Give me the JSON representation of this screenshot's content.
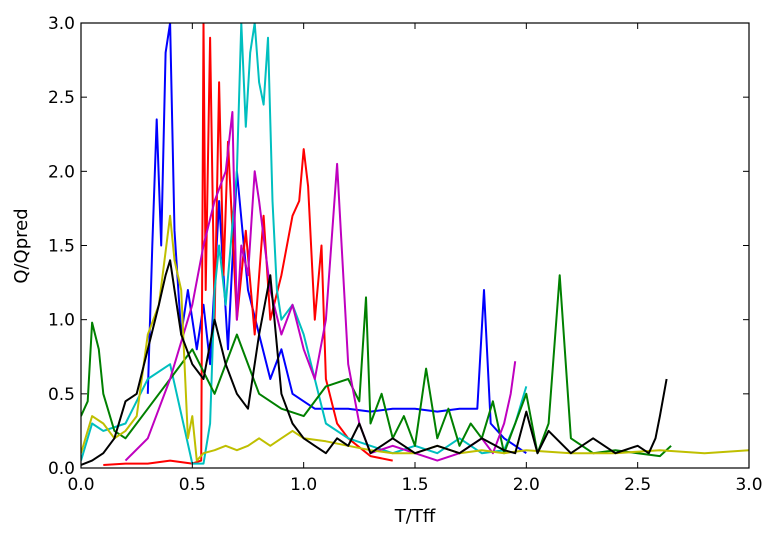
{
  "chart_data": {
    "type": "line",
    "xlabel": "T/Tff",
    "ylabel": "Q/Qpred",
    "xlim": [
      0.0,
      3.0
    ],
    "ylim": [
      0.0,
      3.0
    ],
    "xticks": [
      "0.0",
      "0.5",
      "1.0",
      "1.5",
      "2.0",
      "2.5",
      "3.0"
    ],
    "yticks": [
      "0.0",
      "0.5",
      "1.0",
      "1.5",
      "2.0",
      "2.5",
      "3.0"
    ],
    "grid": false,
    "series": [
      {
        "color": "#0000ff",
        "x": [
          0.3,
          0.32,
          0.34,
          0.36,
          0.38,
          0.4,
          0.42,
          0.45,
          0.48,
          0.52,
          0.55,
          0.58,
          0.62,
          0.66,
          0.7,
          0.75,
          0.8,
          0.85,
          0.9,
          0.95,
          1.0,
          1.05,
          1.1,
          1.2,
          1.3,
          1.4,
          1.5,
          1.6,
          1.7,
          1.78,
          1.81,
          1.84,
          1.9,
          2.0
        ],
        "y": [
          0.5,
          1.5,
          2.35,
          1.5,
          2.8,
          3.0,
          1.6,
          0.9,
          1.2,
          0.8,
          1.1,
          0.7,
          1.8,
          0.8,
          2.0,
          1.2,
          0.9,
          0.6,
          0.8,
          0.5,
          0.45,
          0.4,
          0.4,
          0.4,
          0.38,
          0.4,
          0.4,
          0.38,
          0.4,
          0.4,
          1.2,
          0.3,
          0.2,
          0.1
        ]
      },
      {
        "color": "#ff0000",
        "x": [
          0.1,
          0.2,
          0.3,
          0.4,
          0.5,
          0.54,
          0.55,
          0.56,
          0.58,
          0.6,
          0.62,
          0.64,
          0.66,
          0.7,
          0.74,
          0.78,
          0.82,
          0.85,
          0.9,
          0.95,
          0.98,
          1.0,
          1.02,
          1.05,
          1.08,
          1.1,
          1.15,
          1.2,
          1.3,
          1.4
        ],
        "y": [
          0.02,
          0.03,
          0.03,
          0.05,
          0.03,
          0.05,
          3.0,
          1.2,
          2.9,
          1.0,
          2.6,
          1.3,
          2.2,
          1.0,
          1.6,
          0.9,
          1.7,
          1.0,
          1.3,
          1.7,
          1.8,
          2.15,
          1.9,
          1.0,
          1.5,
          0.6,
          0.3,
          0.2,
          0.08,
          0.05
        ]
      },
      {
        "color": "#00bfbf",
        "x": [
          0.0,
          0.05,
          0.1,
          0.2,
          0.3,
          0.4,
          0.5,
          0.55,
          0.58,
          0.6,
          0.62,
          0.65,
          0.7,
          0.72,
          0.74,
          0.76,
          0.78,
          0.8,
          0.82,
          0.84,
          0.86,
          0.88,
          0.9,
          0.95,
          1.0,
          1.05,
          1.1,
          1.2,
          1.3,
          1.4,
          1.5,
          1.6,
          1.7,
          1.8,
          1.9,
          1.95,
          2.0
        ],
        "y": [
          0.05,
          0.3,
          0.25,
          0.3,
          0.6,
          0.7,
          0.03,
          0.03,
          0.3,
          1.2,
          1.5,
          1.1,
          2.0,
          3.0,
          2.3,
          2.8,
          3.0,
          2.6,
          2.45,
          2.9,
          1.8,
          1.2,
          1.0,
          1.1,
          0.9,
          0.6,
          0.3,
          0.2,
          0.15,
          0.1,
          0.15,
          0.1,
          0.2,
          0.1,
          0.12,
          0.3,
          0.55
        ]
      },
      {
        "color": "#008000",
        "x": [
          0.0,
          0.03,
          0.05,
          0.08,
          0.1,
          0.15,
          0.2,
          0.3,
          0.4,
          0.5,
          0.6,
          0.7,
          0.8,
          0.9,
          1.0,
          1.1,
          1.2,
          1.25,
          1.28,
          1.3,
          1.35,
          1.4,
          1.45,
          1.5,
          1.55,
          1.6,
          1.65,
          1.7,
          1.75,
          1.8,
          1.85,
          1.9,
          2.0,
          2.05,
          2.1,
          2.15,
          2.2,
          2.3,
          2.4,
          2.5,
          2.6,
          2.65
        ],
        "y": [
          0.35,
          0.45,
          0.98,
          0.8,
          0.5,
          0.25,
          0.2,
          0.4,
          0.6,
          0.8,
          0.5,
          0.9,
          0.5,
          0.4,
          0.35,
          0.55,
          0.6,
          0.45,
          1.15,
          0.3,
          0.5,
          0.2,
          0.35,
          0.15,
          0.67,
          0.2,
          0.4,
          0.15,
          0.3,
          0.2,
          0.45,
          0.1,
          0.5,
          0.1,
          0.3,
          1.3,
          0.2,
          0.1,
          0.12,
          0.1,
          0.08,
          0.15
        ]
      },
      {
        "color": "#bf00bf",
        "x": [
          0.2,
          0.3,
          0.4,
          0.5,
          0.55,
          0.6,
          0.65,
          0.68,
          0.7,
          0.72,
          0.75,
          0.78,
          0.8,
          0.85,
          0.9,
          0.95,
          1.0,
          1.05,
          1.1,
          1.15,
          1.2,
          1.25,
          1.3,
          1.4,
          1.5,
          1.6,
          1.7,
          1.8,
          1.85,
          1.9,
          1.93,
          1.95
        ],
        "y": [
          0.05,
          0.2,
          0.6,
          1.1,
          1.5,
          1.8,
          2.0,
          2.4,
          1.0,
          1.5,
          1.3,
          2.0,
          1.8,
          1.2,
          0.9,
          1.1,
          0.8,
          0.6,
          1.0,
          2.05,
          0.7,
          0.3,
          0.1,
          0.15,
          0.1,
          0.05,
          0.1,
          0.2,
          0.1,
          0.3,
          0.5,
          0.72
        ]
      },
      {
        "color": "#bfbf00",
        "x": [
          0.0,
          0.05,
          0.1,
          0.15,
          0.2,
          0.25,
          0.3,
          0.35,
          0.4,
          0.42,
          0.45,
          0.48,
          0.5,
          0.52,
          0.55,
          0.6,
          0.65,
          0.7,
          0.75,
          0.8,
          0.85,
          0.9,
          0.95,
          1.0,
          1.1,
          1.2,
          1.3,
          1.4,
          1.5,
          1.6,
          1.7,
          1.8,
          1.9,
          2.0,
          2.2,
          2.4,
          2.6,
          2.8,
          3.0
        ],
        "y": [
          0.1,
          0.35,
          0.3,
          0.2,
          0.25,
          0.35,
          0.9,
          1.1,
          1.7,
          1.4,
          1.2,
          0.2,
          0.35,
          0.05,
          0.1,
          0.12,
          0.15,
          0.12,
          0.15,
          0.2,
          0.15,
          0.2,
          0.25,
          0.2,
          0.18,
          0.15,
          0.12,
          0.1,
          0.1,
          0.15,
          0.1,
          0.12,
          0.1,
          0.12,
          0.1,
          0.1,
          0.12,
          0.1,
          0.12
        ]
      },
      {
        "color": "#000000",
        "x": [
          0.0,
          0.05,
          0.1,
          0.15,
          0.2,
          0.25,
          0.3,
          0.35,
          0.38,
          0.4,
          0.42,
          0.45,
          0.5,
          0.55,
          0.6,
          0.65,
          0.7,
          0.75,
          0.8,
          0.85,
          0.9,
          0.95,
          1.0,
          1.05,
          1.1,
          1.15,
          1.2,
          1.25,
          1.3,
          1.4,
          1.5,
          1.6,
          1.7,
          1.8,
          1.9,
          1.95,
          2.0,
          2.05,
          2.1,
          2.2,
          2.3,
          2.4,
          2.5,
          2.55,
          2.58,
          2.6,
          2.63
        ],
        "y": [
          0.02,
          0.05,
          0.1,
          0.2,
          0.45,
          0.5,
          0.8,
          1.1,
          1.3,
          1.4,
          1.2,
          0.9,
          0.7,
          0.6,
          1.0,
          0.7,
          0.5,
          0.4,
          0.9,
          1.3,
          0.5,
          0.3,
          0.2,
          0.15,
          0.1,
          0.2,
          0.15,
          0.3,
          0.1,
          0.2,
          0.1,
          0.15,
          0.1,
          0.2,
          0.12,
          0.1,
          0.38,
          0.1,
          0.25,
          0.1,
          0.2,
          0.1,
          0.15,
          0.1,
          0.2,
          0.35,
          0.6
        ]
      }
    ]
  }
}
